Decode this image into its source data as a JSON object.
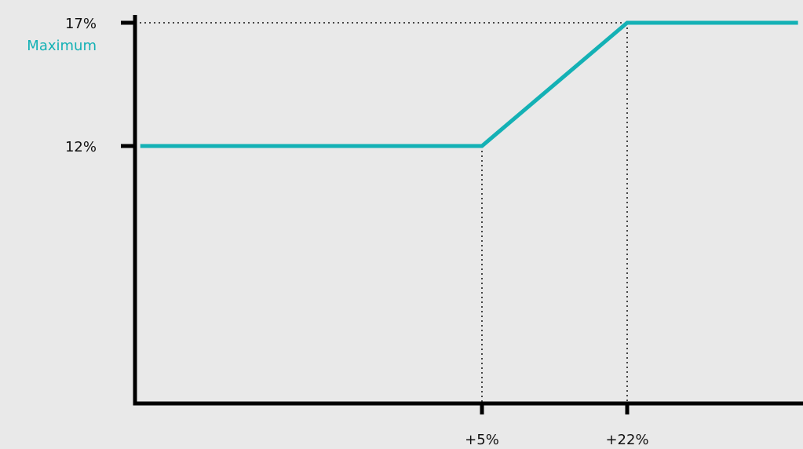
{
  "chart_data": {
    "type": "line",
    "x_ticks": [
      {
        "value": 5,
        "label": "+5%"
      },
      {
        "value": 22,
        "label": "+22%"
      }
    ],
    "y_ticks": [
      {
        "value": 12,
        "label": "12%"
      },
      {
        "value": 17,
        "label": "17%"
      }
    ],
    "y_annotation": "Maximum",
    "xlim": [
      -35,
      42
    ],
    "ylim": [
      2,
      17.5
    ],
    "series": [
      {
        "x": [
          -35,
          5,
          22,
          42
        ],
        "y": [
          12,
          12,
          17,
          17
        ]
      }
    ],
    "grid": false,
    "legend": "none",
    "colors": {
      "line": "#14b1b5",
      "axis": "#000000",
      "text": "#111111",
      "background": "#e9e9e9"
    }
  }
}
